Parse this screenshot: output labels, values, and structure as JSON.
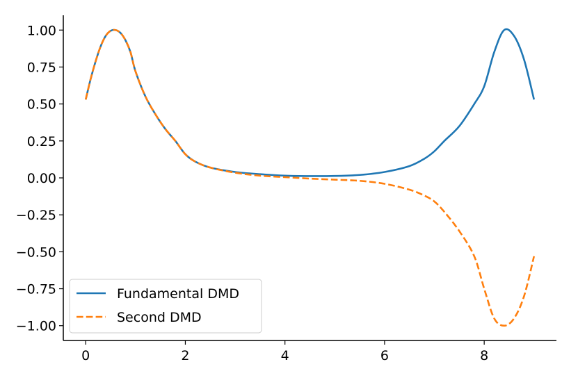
{
  "chart_data": {
    "type": "line",
    "title": "",
    "xlabel": "",
    "ylabel": "",
    "xlim": [
      -0.45,
      9.45
    ],
    "ylim": [
      -1.1,
      1.1
    ],
    "xticks": [
      0,
      2,
      4,
      6,
      8
    ],
    "xtick_labels": [
      "0",
      "2",
      "4",
      "6",
      "8"
    ],
    "yticks": [
      1.0,
      0.75,
      0.5,
      0.25,
      0.0,
      -0.25,
      -0.5,
      -0.75,
      -1.0
    ],
    "ytick_labels": [
      "1.00",
      "0.75",
      "0.50",
      "0.25",
      "0.00",
      "−0.25",
      "−0.50",
      "−0.75",
      "−1.00"
    ],
    "grid": false,
    "legend_position": "lower-left",
    "series": [
      {
        "name": "Fundamental DMD",
        "color": "#1f77b4",
        "style": "solid",
        "x": [
          0,
          0.1,
          0.2,
          0.3,
          0.4,
          0.5,
          0.6,
          0.7,
          0.8,
          0.9,
          1.0,
          1.2,
          1.4,
          1.6,
          1.8,
          2.0,
          2.2,
          2.5,
          3.0,
          3.5,
          4.0,
          4.5,
          5.0,
          5.5,
          6.0,
          6.5,
          6.8,
          7.0,
          7.2,
          7.5,
          7.8,
          8.0,
          8.2,
          8.4,
          8.6,
          8.8,
          9.0
        ],
        "y": [
          0.53,
          0.67,
          0.79,
          0.89,
          0.96,
          0.995,
          1.0,
          0.98,
          0.93,
          0.85,
          0.72,
          0.55,
          0.43,
          0.33,
          0.25,
          0.16,
          0.11,
          0.07,
          0.04,
          0.025,
          0.015,
          0.012,
          0.013,
          0.02,
          0.04,
          0.08,
          0.13,
          0.18,
          0.25,
          0.35,
          0.5,
          0.62,
          0.85,
          1.0,
          0.96,
          0.8,
          0.53
        ]
      },
      {
        "name": "Second DMD",
        "color": "#ff7f0e",
        "style": "dashed",
        "x": [
          0,
          0.1,
          0.2,
          0.3,
          0.4,
          0.5,
          0.6,
          0.7,
          0.8,
          0.9,
          1.0,
          1.2,
          1.4,
          1.6,
          1.8,
          2.0,
          2.2,
          2.5,
          3.0,
          3.5,
          4.0,
          4.5,
          5.0,
          5.5,
          6.0,
          6.5,
          6.8,
          7.0,
          7.2,
          7.5,
          7.8,
          8.0,
          8.2,
          8.4,
          8.6,
          8.8,
          9.0
        ],
        "y": [
          0.53,
          0.67,
          0.79,
          0.89,
          0.96,
          0.995,
          1.0,
          0.98,
          0.93,
          0.85,
          0.72,
          0.55,
          0.43,
          0.33,
          0.25,
          0.16,
          0.11,
          0.07,
          0.035,
          0.015,
          0.005,
          -0.005,
          -0.012,
          -0.02,
          -0.04,
          -0.08,
          -0.12,
          -0.16,
          -0.23,
          -0.36,
          -0.53,
          -0.75,
          -0.95,
          -1.0,
          -0.95,
          -0.8,
          -0.53
        ]
      }
    ]
  }
}
